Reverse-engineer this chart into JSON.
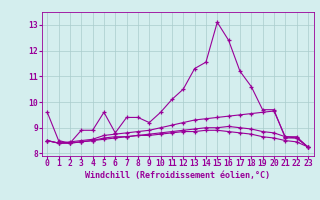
{
  "x": [
    0,
    1,
    2,
    3,
    4,
    5,
    6,
    7,
    8,
    9,
    10,
    11,
    12,
    13,
    14,
    15,
    16,
    17,
    18,
    19,
    20,
    21,
    22,
    23
  ],
  "line1": [
    9.6,
    8.5,
    8.4,
    8.9,
    8.9,
    9.6,
    8.8,
    9.4,
    9.4,
    9.2,
    9.6,
    10.1,
    10.5,
    11.3,
    11.55,
    13.1,
    12.4,
    11.2,
    10.6,
    9.7,
    9.7,
    8.6,
    8.6,
    8.25
  ],
  "line2": [
    8.5,
    8.4,
    8.45,
    8.5,
    8.55,
    8.7,
    8.75,
    8.8,
    8.85,
    8.9,
    9.0,
    9.1,
    9.2,
    9.3,
    9.35,
    9.4,
    9.45,
    9.5,
    9.55,
    9.6,
    9.65,
    8.65,
    8.65,
    8.25
  ],
  "line3": [
    8.5,
    8.4,
    8.4,
    8.45,
    8.5,
    8.55,
    8.6,
    8.65,
    8.7,
    8.7,
    8.75,
    8.8,
    8.85,
    8.85,
    8.9,
    8.9,
    8.85,
    8.8,
    8.75,
    8.65,
    8.6,
    8.5,
    8.45,
    8.25
  ],
  "line4": [
    8.5,
    8.4,
    8.4,
    8.45,
    8.5,
    8.6,
    8.65,
    8.65,
    8.7,
    8.75,
    8.8,
    8.85,
    8.9,
    8.95,
    9.0,
    9.0,
    9.05,
    9.0,
    8.95,
    8.85,
    8.8,
    8.65,
    8.6,
    8.25
  ],
  "line_color": "#990099",
  "bg_color": "#d4eeee",
  "grid_color": "#aacccc",
  "ylim": [
    7.9,
    13.5
  ],
  "yticks": [
    8,
    9,
    10,
    11,
    12,
    13
  ],
  "xlabel": "Windchill (Refroidissement éolien,°C)",
  "xlabel_fontsize": 6.0,
  "tick_fontsize": 5.8
}
